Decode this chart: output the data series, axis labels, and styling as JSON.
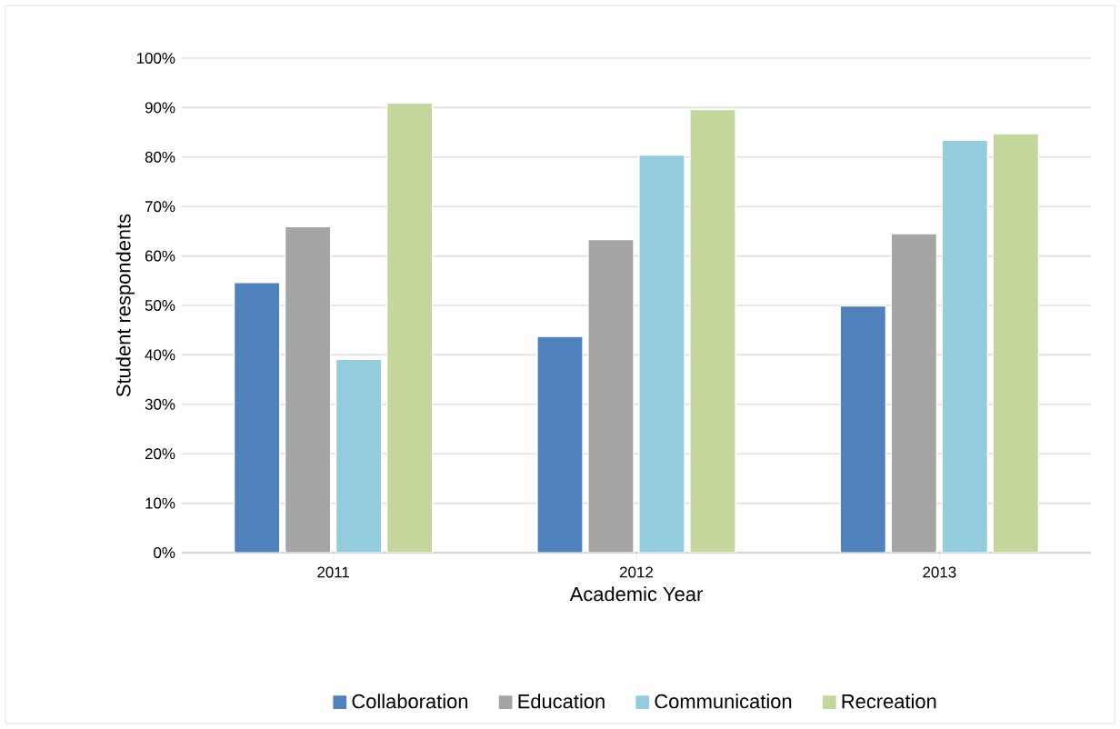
{
  "chart_data": {
    "type": "bar",
    "xlabel": "Academic Year",
    "ylabel": "Student respondents",
    "categories": [
      "2011",
      "2012",
      "2013"
    ],
    "series": [
      {
        "name": "Collaboration",
        "color": "#4f81bd",
        "values": [
          54.6,
          43.7,
          49.9
        ]
      },
      {
        "name": "Education",
        "color": "#a5a5a5",
        "values": [
          65.9,
          63.3,
          64.5
        ]
      },
      {
        "name": "Communication",
        "color": "#93cddd",
        "values": [
          39.1,
          80.4,
          83.4
        ]
      },
      {
        "name": "Recreation",
        "color": "#c3d69b",
        "values": [
          90.9,
          89.6,
          84.7
        ]
      }
    ],
    "ylim": [
      0,
      100
    ],
    "yticks": [
      {
        "value": 0,
        "label": "0%"
      },
      {
        "value": 10,
        "label": "10%"
      },
      {
        "value": 20,
        "label": "20%"
      },
      {
        "value": 30,
        "label": "30%"
      },
      {
        "value": 40,
        "label": "40%"
      },
      {
        "value": 50,
        "label": "50%"
      },
      {
        "value": 60,
        "label": "60%"
      },
      {
        "value": 70,
        "label": "70%"
      },
      {
        "value": 80,
        "label": "80%"
      },
      {
        "value": 90,
        "label": "90%"
      },
      {
        "value": 100,
        "label": "100%"
      }
    ],
    "grid": "y",
    "legend": "bottom"
  }
}
